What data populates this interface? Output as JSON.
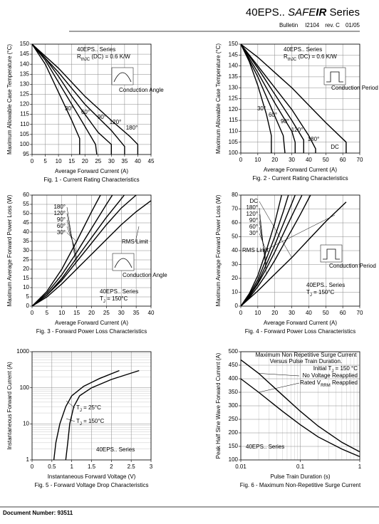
{
  "header": {
    "model": "40EPS..",
    "brand_safe": "SAFE",
    "brand_ir": "IR",
    "series": "Series",
    "bulletin": "Bulletin",
    "bulletin_no": "I2104",
    "rev": "rev. C",
    "date": "01/05"
  },
  "footer": {
    "document_number": "Document Number: 93511"
  },
  "chart_data": [
    {
      "type": "line",
      "caption": "Fig. 1 - Current Rating Characteristics",
      "xlabel": "Average Forward Current (A)",
      "ylabel": "Maximum Allowable Case Temperature (°C)",
      "xlim": [
        0,
        45
      ],
      "ylim": [
        95,
        150
      ],
      "xticks": [
        0,
        5,
        10,
        15,
        20,
        25,
        30,
        35,
        40,
        45
      ],
      "yticks": [
        95,
        100,
        105,
        110,
        115,
        120,
        125,
        130,
        135,
        140,
        145,
        150
      ],
      "grid": true,
      "annotations": [
        "40EPS.. Series",
        [
          "R",
          "thJC",
          " (DC) = 0.6 K/W"
        ],
        "Conduction Angle"
      ],
      "series": [
        {
          "name": "30°",
          "color": "#000",
          "x": [
            0,
            5,
            10,
            15,
            18,
            18
          ],
          "values": [
            150,
            140,
            126,
            112,
            103,
            95
          ]
        },
        {
          "name": "60°",
          "color": "#000",
          "x": [
            0,
            5,
            10,
            15,
            20,
            24,
            24.5
          ],
          "values": [
            150,
            142,
            131,
            120,
            109,
            100,
            95
          ]
        },
        {
          "name": "90°",
          "color": "#000",
          "x": [
            0,
            5,
            10,
            15,
            20,
            25,
            30,
            30
          ],
          "values": [
            150,
            143,
            134,
            124,
            115,
            106,
            100,
            95
          ]
        },
        {
          "name": "120°",
          "color": "#000",
          "x": [
            0,
            10,
            20,
            30,
            35,
            35
          ],
          "values": [
            150,
            136,
            120,
            107,
            99,
            95
          ]
        },
        {
          "name": "180°",
          "color": "#000",
          "x": [
            0,
            10,
            20,
            30,
            37,
            40,
            40
          ],
          "values": [
            150,
            138,
            124,
            112,
            104,
            100,
            95
          ]
        }
      ]
    },
    {
      "type": "line",
      "caption": "Fig. 2 - Current Rating Characteristics",
      "xlabel": "Average Forward Current (A)",
      "ylabel": "Maximum Allowable Case Temperature (°C)",
      "xlim": [
        0,
        70
      ],
      "ylim": [
        100,
        150
      ],
      "xticks": [
        0,
        10,
        20,
        30,
        40,
        50,
        60,
        70
      ],
      "yticks": [
        100,
        105,
        110,
        115,
        120,
        125,
        130,
        135,
        140,
        145,
        150
      ],
      "grid": true,
      "annotations": [
        "40EPS.. Series",
        [
          "R",
          "thJC",
          " (DC) = 0.6 K/W"
        ],
        "Conduction Period"
      ],
      "series": [
        {
          "name": "30°",
          "color": "#000",
          "x": [
            0,
            5,
            10,
            15,
            18,
            18
          ],
          "values": [
            150,
            142,
            131,
            118,
            108,
            100
          ]
        },
        {
          "name": "60°",
          "color": "#000",
          "x": [
            0,
            10,
            20,
            25,
            26
          ],
          "values": [
            150,
            135,
            117,
            108,
            100
          ]
        },
        {
          "name": "90°",
          "color": "#000",
          "x": [
            0,
            10,
            20,
            30,
            32,
            32
          ],
          "values": [
            150,
            137,
            123,
            110,
            105,
            100
          ]
        },
        {
          "name": "120°",
          "color": "#000",
          "x": [
            0,
            10,
            20,
            30,
            37,
            37
          ],
          "values": [
            150,
            139,
            127,
            115,
            106,
            100
          ]
        },
        {
          "name": "180°",
          "color": "#000",
          "x": [
            0,
            10,
            20,
            30,
            40,
            44,
            44
          ],
          "values": [
            150,
            140,
            130,
            120,
            108,
            102,
            100
          ]
        },
        {
          "name": "DC",
          "color": "#000",
          "x": [
            0,
            10,
            20,
            30,
            40,
            50,
            62,
            62
          ],
          "values": [
            150,
            144,
            137,
            130,
            122,
            114,
            105,
            100
          ]
        }
      ]
    },
    {
      "type": "line",
      "caption": "Fig. 3 - Forward Power Loss Characteristics",
      "xlabel": "Average Forward Current (A)",
      "ylabel": "Maximum Average Forward Power Loss (W)",
      "xlim": [
        0,
        40
      ],
      "ylim": [
        0,
        60
      ],
      "xticks": [
        0,
        5,
        10,
        15,
        20,
        25,
        30,
        35,
        40
      ],
      "yticks": [
        0,
        5,
        10,
        15,
        20,
        25,
        30,
        35,
        40,
        45,
        50,
        55,
        60
      ],
      "grid": true,
      "annotations": [
        "RMS Limit",
        "Conduction Angle",
        "40EPS.. Series",
        [
          "T",
          "J",
          " = 150°C"
        ]
      ],
      "series": [
        {
          "name": "30°",
          "color": "#000",
          "x": [
            0,
            5,
            10,
            15,
            20,
            23
          ],
          "values": [
            0,
            8,
            20,
            35,
            51,
            60
          ]
        },
        {
          "name": "60°",
          "color": "#000",
          "x": [
            0,
            5,
            10,
            15,
            20,
            25,
            27
          ],
          "values": [
            0,
            7,
            17,
            29,
            42,
            55,
            60
          ]
        },
        {
          "name": "90°",
          "color": "#000",
          "x": [
            0,
            5,
            10,
            15,
            20,
            25,
            30,
            31
          ],
          "values": [
            0,
            6,
            15,
            26,
            37,
            48,
            58,
            60
          ]
        },
        {
          "name": "120°",
          "color": "#000",
          "x": [
            0,
            5,
            10,
            15,
            20,
            25,
            30,
            35
          ],
          "values": [
            0,
            6,
            14,
            24,
            34,
            44,
            53,
            60
          ]
        },
        {
          "name": "180°",
          "color": "#000",
          "x": [
            0,
            5,
            10,
            15,
            20,
            25,
            30,
            35,
            40
          ],
          "values": [
            0,
            5,
            12,
            20,
            28,
            36,
            44,
            51,
            57
          ]
        }
      ]
    },
    {
      "type": "line",
      "caption": "Fig. 4 - Forward Power Loss Characteristics",
      "xlabel": "Average Forward Current (A)",
      "ylabel": "Maximum Average Forward Power Loss (W)",
      "xlim": [
        0,
        70
      ],
      "ylim": [
        0,
        80
      ],
      "xticks": [
        0,
        10,
        20,
        30,
        40,
        50,
        60,
        70
      ],
      "yticks": [
        0,
        10,
        20,
        30,
        40,
        50,
        60,
        70,
        80
      ],
      "grid": true,
      "annotations": [
        "RMS Limit",
        "Conduction Period",
        "40EPS.. Series",
        [
          "T",
          "J",
          " = 150°C"
        ]
      ],
      "series": [
        {
          "name": "30°",
          "color": "#000",
          "x": [
            0,
            5,
            10,
            15,
            20,
            24
          ],
          "values": [
            0,
            9,
            22,
            40,
            60,
            80
          ]
        },
        {
          "name": "60°",
          "color": "#000",
          "x": [
            0,
            5,
            10,
            15,
            20,
            25,
            28
          ],
          "values": [
            0,
            8,
            19,
            34,
            50,
            68,
            80
          ]
        },
        {
          "name": "90°",
          "color": "#000",
          "x": [
            0,
            5,
            10,
            15,
            20,
            25,
            30,
            32
          ],
          "values": [
            0,
            7,
            17,
            30,
            44,
            59,
            74,
            80
          ]
        },
        {
          "name": "120°",
          "color": "#000",
          "x": [
            0,
            5,
            10,
            15,
            20,
            25,
            30,
            36
          ],
          "values": [
            0,
            7,
            16,
            27,
            39,
            52,
            65,
            80
          ]
        },
        {
          "name": "180°",
          "color": "#000",
          "x": [
            0,
            5,
            10,
            15,
            20,
            25,
            30,
            35,
            41
          ],
          "values": [
            0,
            6,
            14,
            23,
            33,
            44,
            55,
            66,
            80
          ]
        },
        {
          "name": "DC",
          "color": "#000",
          "x": [
            0,
            10,
            20,
            30,
            40,
            50,
            62
          ],
          "values": [
            0,
            11,
            23,
            35,
            48,
            61,
            75
          ]
        }
      ]
    },
    {
      "type": "line",
      "caption": "Fig. 5 - Forward Voltage Drop Characteristics",
      "xlabel": "Instantaneous Forward Voltage (V)",
      "ylabel": "Instantaneous Forward Current (A)",
      "xlim": [
        0,
        3
      ],
      "ylim": [
        1,
        1000
      ],
      "ylog": true,
      "xticks": [
        0,
        0.5,
        1,
        1.5,
        2,
        2.5,
        3
      ],
      "yticks": [
        1,
        10,
        100,
        1000
      ],
      "grid": true,
      "annotations": [
        "40EPS.. Series"
      ],
      "series": [
        {
          "name": [
            "T",
            "J",
            " = 25°C"
          ],
          "color": "#000",
          "x": [
            0.85,
            0.9,
            0.95,
            1.05,
            1.2,
            1.5,
            2.0,
            2.7
          ],
          "values": [
            1,
            3,
            10,
            30,
            60,
            100,
            170,
            300
          ]
        },
        {
          "name": [
            "T",
            "J",
            " = 150°C"
          ],
          "color": "#000",
          "x": [
            0.55,
            0.6,
            0.7,
            0.85,
            1.0,
            1.3,
            1.7,
            2.2
          ],
          "values": [
            1,
            3,
            10,
            30,
            60,
            110,
            180,
            300
          ]
        }
      ]
    },
    {
      "type": "line",
      "caption": "Fig. 6 - Maximum Non-Repetitive Surge Current",
      "xlabel": "Pulse Train Duration (s)",
      "ylabel": "Peak Half Sine Wave Forward Current (A)",
      "xlim": [
        0.01,
        1
      ],
      "xlog": true,
      "ylim": [
        100,
        500
      ],
      "xticks": [
        0.01,
        0.1,
        1
      ],
      "yticks": [
        100,
        150,
        200,
        250,
        300,
        350,
        400,
        450,
        500
      ],
      "grid": true,
      "annotations": [
        "Maximum Non Repetitive Surge Current",
        "Versus Pulse Train Duration.",
        [
          "Initial T",
          "J",
          " = 150 °C"
        ],
        "40EPS.. Series"
      ],
      "series": [
        {
          "name": "No Voltage Reapplied",
          "color": "#000",
          "x": [
            0.01,
            0.02,
            0.05,
            0.1,
            0.2,
            0.5,
            1
          ],
          "values": [
            470,
            420,
            340,
            280,
            225,
            165,
            130
          ]
        },
        {
          "name": [
            "Rated V",
            "RRM",
            " Reapplied"
          ],
          "color": "#000",
          "x": [
            0.01,
            0.02,
            0.05,
            0.1,
            0.2,
            0.5,
            1
          ],
          "values": [
            400,
            350,
            280,
            230,
            185,
            140,
            112
          ]
        }
      ]
    }
  ]
}
